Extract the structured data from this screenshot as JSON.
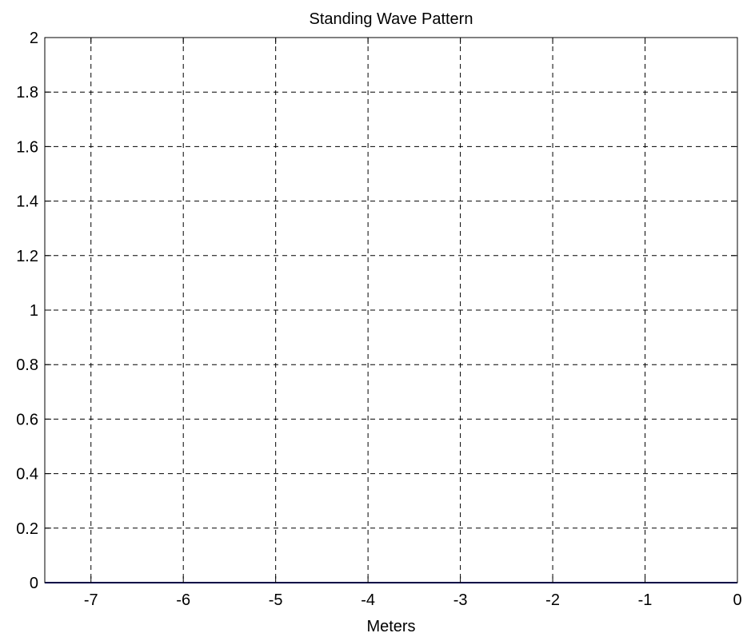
{
  "chart_data": {
    "type": "line",
    "title": "Standing Wave Pattern",
    "xlabel": "Meters",
    "ylabel": "",
    "xlim": [
      -7.5,
      0
    ],
    "ylim": [
      0,
      2
    ],
    "xticks": [
      -7,
      -6,
      -5,
      -4,
      -3,
      -2,
      -1,
      0
    ],
    "yticks": [
      0,
      0.2,
      0.4,
      0.6,
      0.8,
      1,
      1.2,
      1.4,
      1.6,
      1.8,
      2
    ],
    "xtick_labels": [
      "-7",
      "-6",
      "-5",
      "-4",
      "-3",
      "-2",
      "-1",
      "0"
    ],
    "ytick_labels": [
      "0",
      "0.2",
      "0.4",
      "0.6",
      "0.8",
      "1",
      "1.2",
      "1.4",
      "1.6",
      "1.8",
      "2"
    ],
    "grid": true,
    "grid_style": "dashed",
    "series": [
      {
        "color": "#00008b",
        "x": [
          -7.5,
          0
        ],
        "y": [
          0,
          0
        ]
      }
    ]
  }
}
